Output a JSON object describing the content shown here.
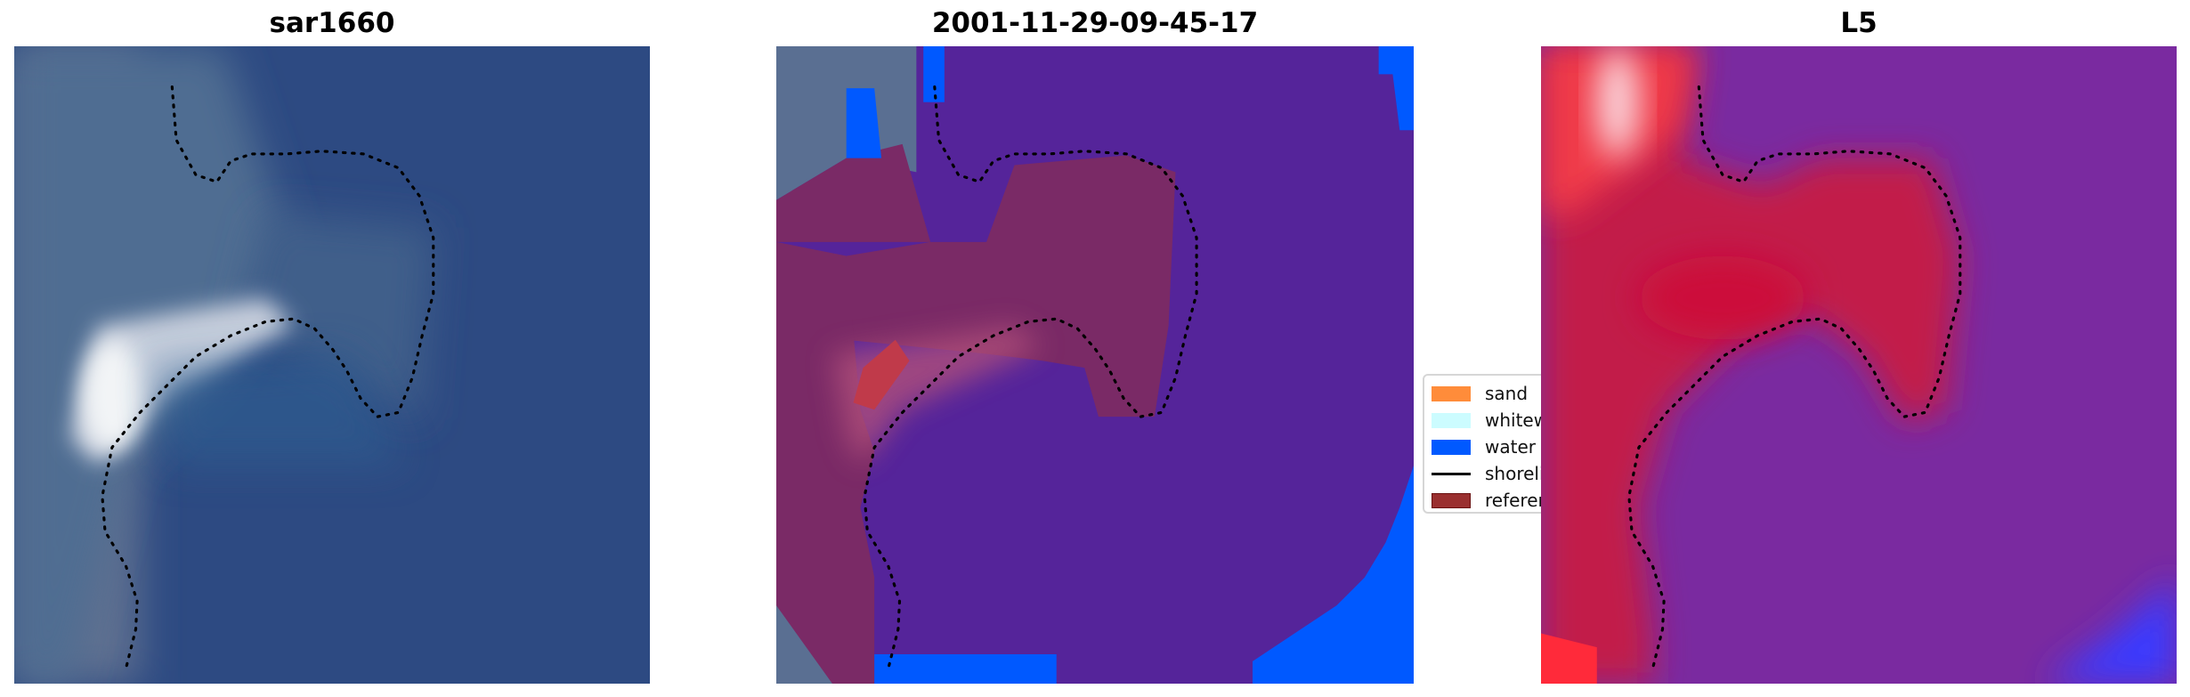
{
  "panels": [
    {
      "title": "sar1660"
    },
    {
      "title": "2001-11-29-09-45-17"
    },
    {
      "title": "L5"
    }
  ],
  "legend": {
    "items": [
      {
        "label": "sand",
        "color": "#ff8c3a",
        "type": "patch"
      },
      {
        "label": "whitewater",
        "color": "#ccfcff",
        "type": "patch"
      },
      {
        "label": "water",
        "color": "#0059ff",
        "type": "patch"
      },
      {
        "label": "shoreline",
        "color": "#000000",
        "type": "line"
      },
      {
        "label": "reference",
        "color": "#9a2f2f",
        "type": "patch"
      }
    ]
  },
  "colors": {
    "classified_water_overlay": "#55249a",
    "reference_overlay": "#7a2a5e",
    "probability_high": "#c8103c",
    "probability_low": "#7a2aa0"
  }
}
